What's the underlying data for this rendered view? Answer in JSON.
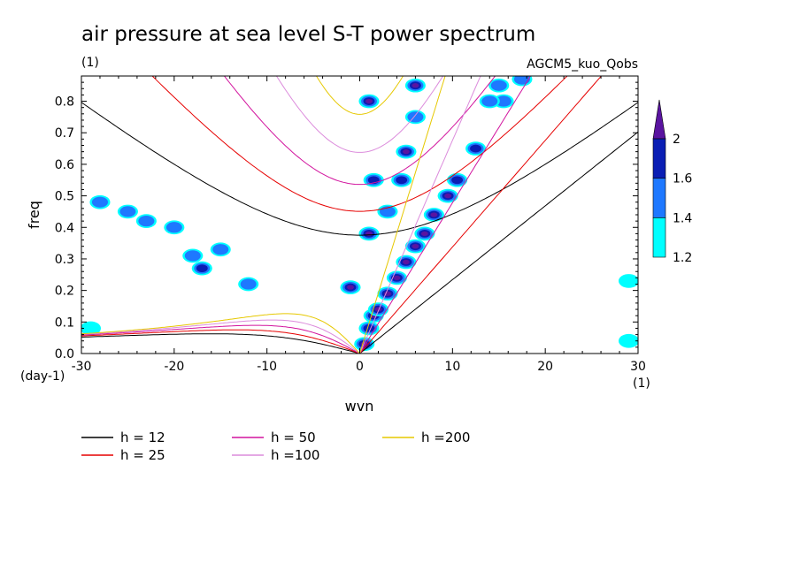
{
  "chart_data": {
    "type": "line",
    "title": "air pressure at sea level S-T power spectrum",
    "subtitle": "(1)",
    "source_label": "AGCM5_kuo_Qobs",
    "xlabel": "wvn",
    "ylabel": "freq",
    "x_unit": "(1)",
    "y_unit": "(day-1)",
    "xlim": [
      -30,
      30
    ],
    "ylim": [
      0,
      0.88
    ],
    "xticks": [
      "-30",
      "-20",
      "-10",
      "0",
      "10",
      "20",
      "30"
    ],
    "yticks": [
      "0.0",
      "0.1",
      "0.2",
      "0.3",
      "0.4",
      "0.5",
      "0.6",
      "0.7",
      "0.8"
    ],
    "colorbar": {
      "levels": [
        "1.2",
        "1.4",
        "1.6",
        "2"
      ],
      "colors": [
        "#00ffff",
        "#1e78ff",
        "#0a1eb4",
        "#5a14a0"
      ]
    },
    "series": [
      {
        "name": "h = 12",
        "h": 12,
        "color": "#000000"
      },
      {
        "name": "h = 25",
        "h": 25,
        "color": "#e60000"
      },
      {
        "name": "h = 50",
        "h": 50,
        "color": "#d2149e"
      },
      {
        "name": "h =100",
        "h": 100,
        "color": "#dc8cdc"
      },
      {
        "name": "h =200",
        "h": 200,
        "color": "#e6c800"
      }
    ],
    "spectral_peaks": [
      {
        "x": 0.5,
        "y": 0.03,
        "level": 2.0
      },
      {
        "x": 1.0,
        "y": 0.08,
        "level": 1.6
      },
      {
        "x": 1.5,
        "y": 0.12,
        "level": 2.0
      },
      {
        "x": 2.0,
        "y": 0.14,
        "level": 2.0
      },
      {
        "x": 3.0,
        "y": 0.19,
        "level": 2.0
      },
      {
        "x": 4.0,
        "y": 0.24,
        "level": 2.0
      },
      {
        "x": 5.0,
        "y": 0.29,
        "level": 2.0
      },
      {
        "x": 6.0,
        "y": 0.34,
        "level": 2.0
      },
      {
        "x": 7.0,
        "y": 0.38,
        "level": 2.0
      },
      {
        "x": 8.0,
        "y": 0.44,
        "level": 2.0
      },
      {
        "x": 9.5,
        "y": 0.5,
        "level": 2.0
      },
      {
        "x": 10.5,
        "y": 0.55,
        "level": 1.6
      },
      {
        "x": 12.5,
        "y": 0.65,
        "level": 1.6
      },
      {
        "x": 15.5,
        "y": 0.8,
        "level": 1.4
      },
      {
        "x": 17.5,
        "y": 0.87,
        "level": 1.4
      },
      {
        "x": -1.0,
        "y": 0.21,
        "level": 2.0
      },
      {
        "x": 1.0,
        "y": 0.38,
        "level": 2.0
      },
      {
        "x": 1.0,
        "y": 0.8,
        "level": 2.0
      },
      {
        "x": 5.0,
        "y": 0.64,
        "level": 2.0
      },
      {
        "x": 6.0,
        "y": 0.85,
        "level": 2.0
      },
      {
        "x": 4.5,
        "y": 0.55,
        "level": 1.6
      },
      {
        "x": 1.5,
        "y": 0.55,
        "level": 1.6
      },
      {
        "x": 6.0,
        "y": 0.75,
        "level": 1.4
      },
      {
        "x": 3.0,
        "y": 0.45,
        "level": 1.4
      },
      {
        "x": 14.0,
        "y": 0.8,
        "level": 1.4
      },
      {
        "x": 15.0,
        "y": 0.85,
        "level": 1.4
      },
      {
        "x": -28.0,
        "y": 0.48,
        "level": 1.4
      },
      {
        "x": -25.0,
        "y": 0.45,
        "level": 1.4
      },
      {
        "x": -23.0,
        "y": 0.42,
        "level": 1.4
      },
      {
        "x": -20.0,
        "y": 0.4,
        "level": 1.4
      },
      {
        "x": -18.0,
        "y": 0.31,
        "level": 1.4
      },
      {
        "x": -17.0,
        "y": 0.27,
        "level": 1.6
      },
      {
        "x": -15.0,
        "y": 0.33,
        "level": 1.4
      },
      {
        "x": -12.0,
        "y": 0.22,
        "level": 1.4
      },
      {
        "x": -29.0,
        "y": 0.08,
        "level": 1.2
      },
      {
        "x": 29.0,
        "y": 0.04,
        "level": 1.2
      },
      {
        "x": 29.0,
        "y": 0.23,
        "level": 1.2
      }
    ],
    "legend_position": "below-left"
  }
}
